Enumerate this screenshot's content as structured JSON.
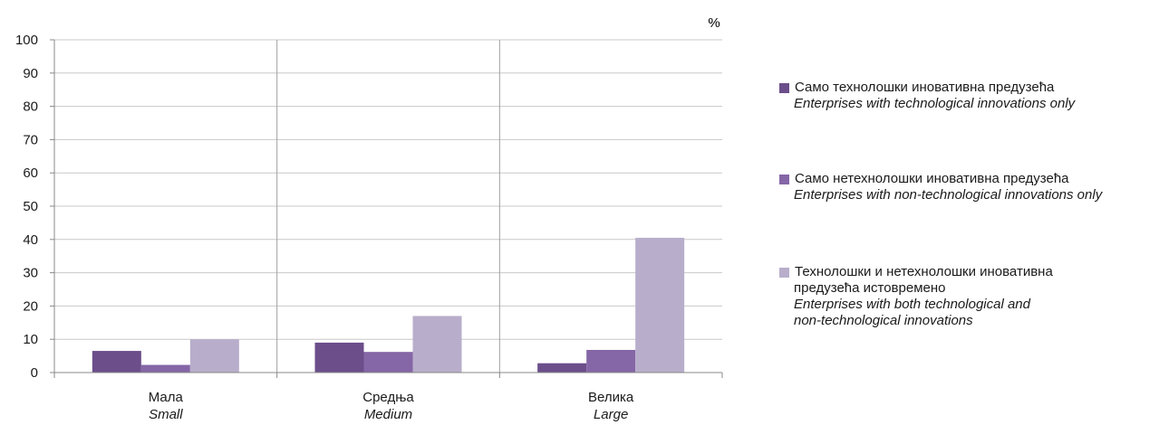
{
  "chart_data": {
    "type": "bar",
    "unit_label": "%",
    "ylim": [
      0,
      100
    ],
    "yticks": [
      0,
      10,
      20,
      30,
      40,
      50,
      60,
      70,
      80,
      90,
      100
    ],
    "categories": [
      {
        "sr": "Мала",
        "en": "Small"
      },
      {
        "sr": "Средња",
        "en": "Medium"
      },
      {
        "sr": "Велика",
        "en": "Large"
      }
    ],
    "series": [
      {
        "sr": "Само технолошки иновативна предузећа",
        "en": "Enterprises with technological innovations only",
        "color": "#6b4e8a",
        "values": [
          6.5,
          9,
          2.8
        ]
      },
      {
        "sr": "Само нетехнолошки иновативна предузећа",
        "en": "Enterprises with non-technological innovations only",
        "color": "#8566a6",
        "values": [
          2.3,
          6.2,
          6.8
        ]
      },
      {
        "sr_line1": "Технолошки и нетехнолошки иновативна",
        "sr_line2": "предузећа истовремено",
        "en_line1": "Enterprises with both technological and",
        "en_line2": "non-technological innovations",
        "color": "#b8aecb",
        "values": [
          10,
          17,
          40.5
        ]
      }
    ],
    "grid": true
  }
}
